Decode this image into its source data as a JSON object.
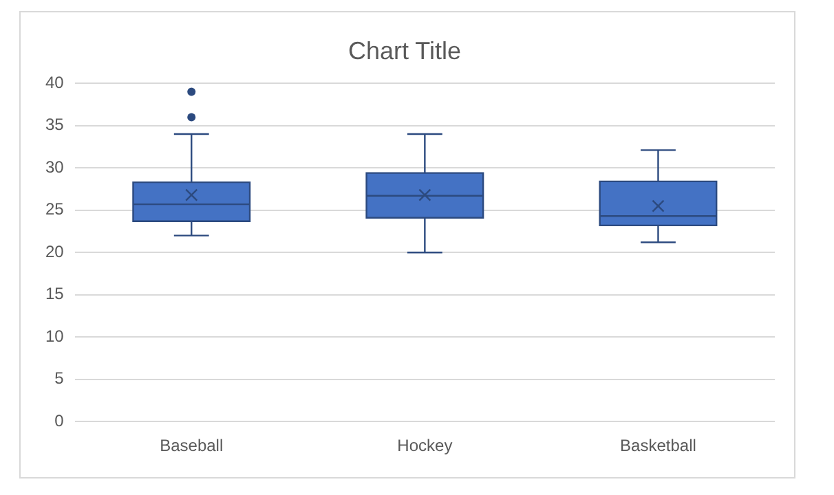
{
  "chart_data": {
    "type": "box",
    "title": "Chart Title",
    "categories": [
      "Baseball",
      "Hockey",
      "Basketball"
    ],
    "boxes": [
      {
        "low": 22,
        "q1": 23.7,
        "median": 25.7,
        "q3": 28.3,
        "high": 34,
        "mean": 26.8,
        "outliers": [
          36,
          39
        ]
      },
      {
        "low": 20,
        "q1": 24.1,
        "median": 26.7,
        "q3": 29.4,
        "high": 34,
        "mean": 26.8
      },
      {
        "low": 21.2,
        "q1": 23.2,
        "median": 24.3,
        "q3": 28.4,
        "high": 32.1,
        "mean": 25.5
      }
    ],
    "color": "#4472c4",
    "ylim": [
      0,
      40
    ],
    "yticks": [
      0,
      5,
      10,
      15,
      20,
      25,
      30,
      35,
      40
    ],
    "grid": "y",
    "legend": false
  }
}
